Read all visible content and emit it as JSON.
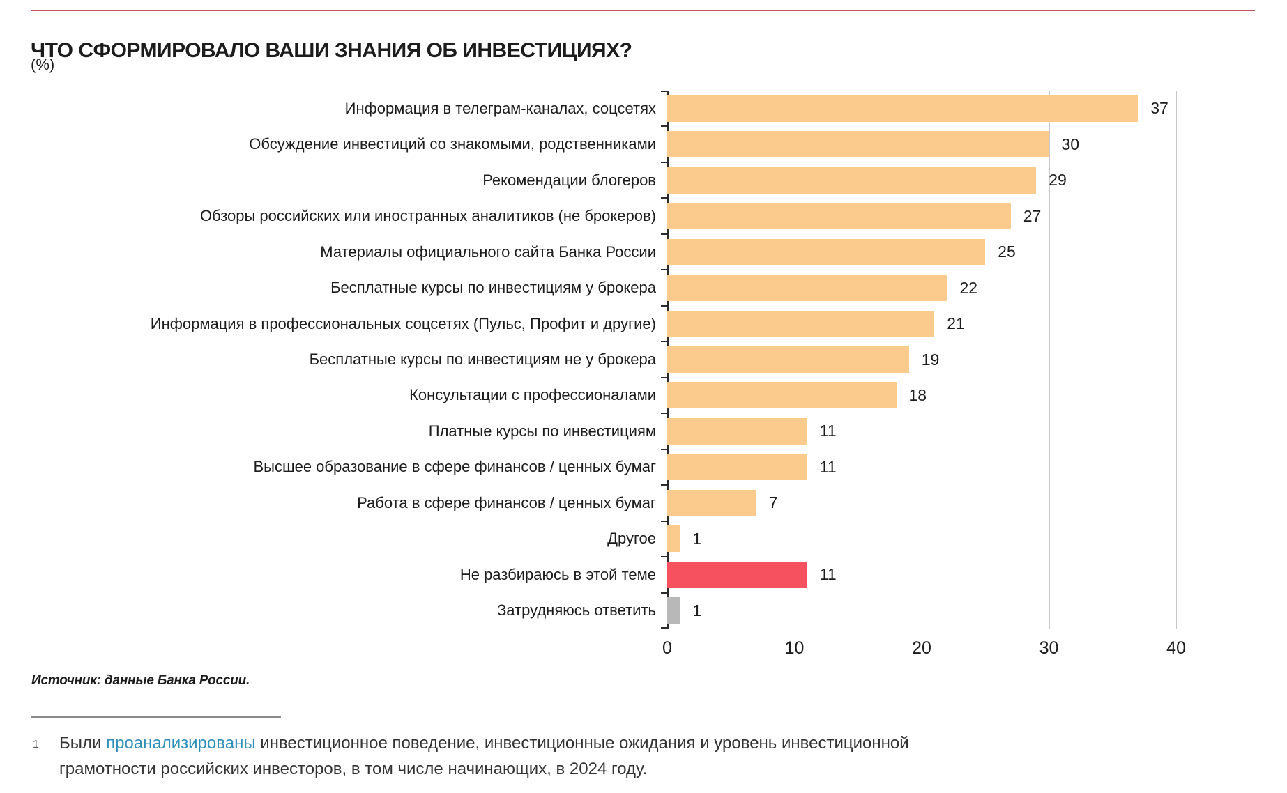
{
  "header": {
    "title": "ЧТО СФОРМИРОВАЛО ВАШИ ЗНАНИЯ ОБ ИНВЕСТИЦИЯХ?",
    "units": "(%)"
  },
  "palette": {
    "orange": "#FBCA8D",
    "red": "#F5515F",
    "gray": "#B8B8B8",
    "accent_rule": "#C2545C",
    "gridline": "#C9C9C9",
    "axis": "#2B2B2B",
    "link": "#2E8FB8"
  },
  "chart_data": {
    "type": "bar",
    "orientation": "horizontal",
    "title": "ЧТО СФОРМИРОВАЛО ВАШИ ЗНАНИЯ ОБ ИНВЕСТИЦИЯХ?",
    "xlabel": "",
    "ylabel": "",
    "xlim": [
      0,
      40
    ],
    "x_ticks": [
      0,
      10,
      20,
      30,
      40
    ],
    "grid": true,
    "items": [
      {
        "label": "Информация в телеграм-каналах, соцсетях",
        "value": 37,
        "color": "orange"
      },
      {
        "label": "Обсуждение инвестиций со знакомыми, родственниками",
        "value": 30,
        "color": "orange"
      },
      {
        "label": "Рекомендации блогеров",
        "value": 29,
        "color": "orange"
      },
      {
        "label": "Обзоры российских или иностранных аналитиков (не брокеров)",
        "value": 27,
        "color": "orange"
      },
      {
        "label": "Материалы официального сайта Банка России",
        "value": 25,
        "color": "orange"
      },
      {
        "label": "Бесплатные курсы по инвестициям у брокера",
        "value": 22,
        "color": "orange"
      },
      {
        "label": "Информация в профессиональных соцсетях (Пульс, Профит и другие)",
        "value": 21,
        "color": "orange"
      },
      {
        "label": "Бесплатные курсы по инвестициям не у брокера",
        "value": 19,
        "color": "orange"
      },
      {
        "label": "Консультации с профессионалами",
        "value": 18,
        "color": "orange"
      },
      {
        "label": "Платные курсы по инвестициям",
        "value": 11,
        "color": "orange"
      },
      {
        "label": "Высшее образование в сфере финансов / ценных бумаг",
        "value": 11,
        "color": "orange"
      },
      {
        "label": "Работа в сфере финансов / ценных бумаг",
        "value": 7,
        "color": "orange"
      },
      {
        "label": "Другое",
        "value": 1,
        "color": "orange"
      },
      {
        "label": "Не разбираюсь в этой теме",
        "value": 11,
        "color": "red"
      },
      {
        "label": "Затрудняюсь ответить",
        "value": 1,
        "color": "gray"
      }
    ]
  },
  "footer": {
    "source": "Источник: данные Банка России."
  },
  "footnote": {
    "marker": "1",
    "text_before_link": "Были ",
    "link_text": "проанализированы",
    "text_after_link": " инвестиционное поведение, инвестиционные ожидания и уровень инвестиционной",
    "text_line2": "грамотности российских инвесторов, в том числе начинающих, в 2024 году."
  }
}
